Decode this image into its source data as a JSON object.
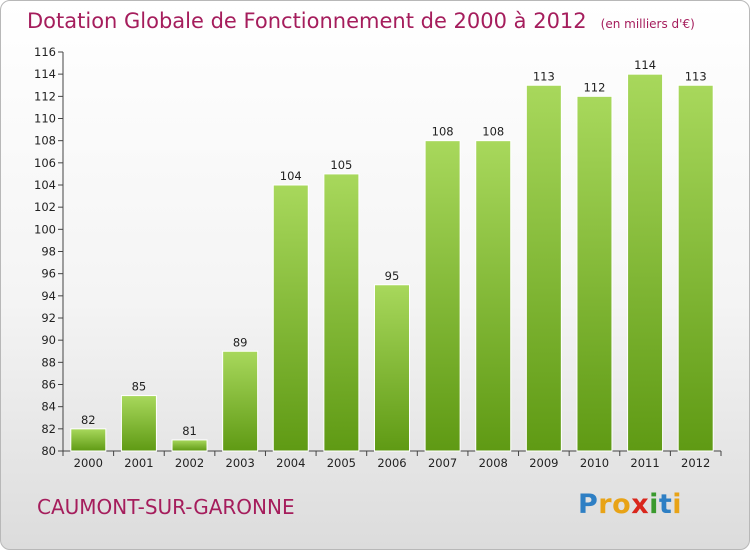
{
  "title": "Dotation Globale de Fonctionnement de 2000 à 2012",
  "unit_note": "(en milliers d'€)",
  "commune": "CAUMONT-SUR-GARONNE",
  "logo": {
    "letters": [
      "P",
      "r",
      "o",
      "x",
      "i",
      "t",
      "i"
    ],
    "colors": [
      "#2e7fc4",
      "#e8a316",
      "#e8a316",
      "#d9261c",
      "#3a9a2e",
      "#2e7fc4",
      "#e8a316"
    ]
  },
  "colors": {
    "bar_light": "#a8d85c",
    "bar_dark": "#5f9a14",
    "title": "#a51d5c"
  },
  "chart_data": {
    "type": "bar",
    "categories": [
      "2000",
      "2001",
      "2002",
      "2003",
      "2004",
      "2005",
      "2006",
      "2007",
      "2008",
      "2009",
      "2010",
      "2011",
      "2012"
    ],
    "values": [
      82,
      85,
      81,
      89,
      104,
      105,
      95,
      108,
      108,
      113,
      112,
      114,
      113
    ],
    "ylim": [
      80,
      116
    ],
    "yticks": [
      80,
      82,
      84,
      86,
      88,
      90,
      92,
      94,
      96,
      98,
      100,
      102,
      104,
      106,
      108,
      110,
      112,
      114,
      116
    ],
    "grid": false
  }
}
